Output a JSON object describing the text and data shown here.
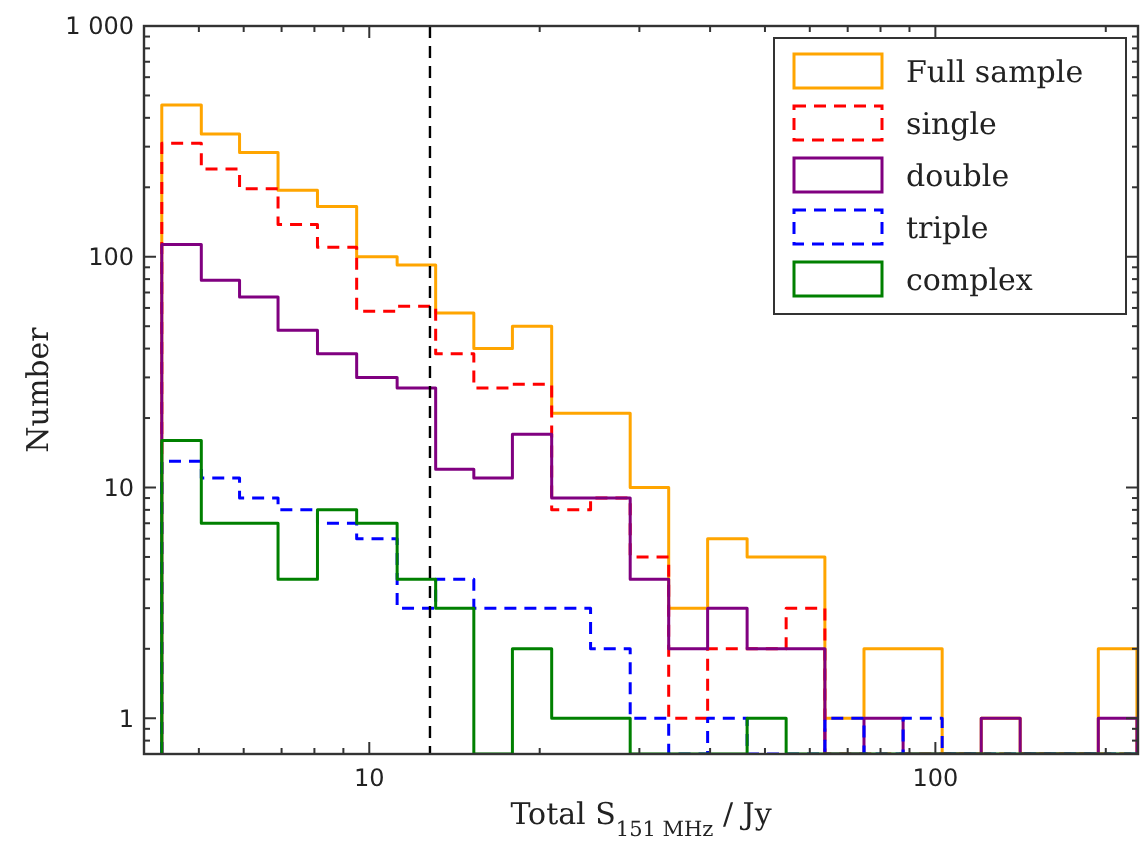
{
  "chart_data": {
    "type": "histogram",
    "xlabel": "Total S$_{151 MHz}$ / Jy",
    "ylabel": "Number",
    "log": "xy",
    "legend": "top right",
    "bins": [
      4.3,
      5.05,
      5.9,
      6.9,
      8.1,
      9.5,
      11.2,
      13.1,
      15.3,
      17.9,
      21,
      24.6,
      28.9,
      33.8,
      39.6,
      46.5,
      54.5,
      63.8,
      74.8,
      87.7,
      102.8,
      120.5,
      141.2,
      165.5,
      194,
      227
    ],
    "xlim": [
      4,
      228
    ],
    "ylim": [
      0.7,
      1000
    ],
    "xticks": [
      {
        "value": 5,
        "label": null
      },
      {
        "value": 6,
        "label": null
      },
      {
        "value": 7,
        "label": null
      },
      {
        "value": 8,
        "label": null
      },
      {
        "value": 9,
        "label": null
      },
      10,
      {
        "value": 20,
        "label": null
      },
      {
        "value": 30,
        "label": null
      },
      {
        "value": 40,
        "label": null
      },
      {
        "value": 50,
        "label": null
      },
      {
        "value": 60,
        "label": null
      },
      {
        "value": 70,
        "label": null
      },
      {
        "value": 80,
        "label": null
      },
      {
        "value": 90,
        "label": null
      },
      100,
      {
        "value": 200,
        "label": null
      }
    ],
    "yticks": [
      {
        "value": 0.8,
        "label": null
      },
      {
        "value": 0.9,
        "label": null
      },
      1,
      {
        "value": 2,
        "label": null
      },
      {
        "value": 3,
        "label": null
      },
      {
        "value": 4,
        "label": null
      },
      {
        "value": 5,
        "label": null
      },
      {
        "value": 6,
        "label": null
      },
      {
        "value": 7,
        "label": null
      },
      {
        "value": 8,
        "label": null
      },
      {
        "value": 9,
        "label": null
      },
      10,
      {
        "value": 20,
        "label": null
      },
      {
        "value": 30,
        "label": null
      },
      {
        "value": 40,
        "label": null
      },
      {
        "value": 50,
        "label": null
      },
      {
        "value": 60,
        "label": null
      },
      {
        "value": 70,
        "label": null
      },
      {
        "value": 80,
        "label": null
      },
      {
        "value": 90,
        "label": null
      },
      100,
      {
        "value": 200,
        "label": null
      },
      {
        "value": 300,
        "label": null
      },
      {
        "value": 400,
        "label": null
      },
      {
        "value": 500,
        "label": null
      },
      {
        "value": 600,
        "label": null
      },
      {
        "value": 700,
        "label": null
      },
      {
        "value": 800,
        "label": null
      },
      {
        "value": 900,
        "label": null
      },
      {
        "value": 1000,
        "label": "1 000"
      }
    ],
    "ref_lines": [
      {
        "axis": "x",
        "value": 12.8,
        "color": "#000000",
        "line_style": "dashed"
      }
    ],
    "series": [
      {
        "name": "Full sample",
        "color": "#ffa500",
        "line_style": "solid",
        "values": [
          455,
          340,
          283,
          194,
          165,
          100,
          92,
          57,
          40,
          50,
          21,
          21,
          10,
          3,
          6,
          5,
          5,
          1,
          2,
          2,
          null,
          1,
          null,
          null,
          2
        ]
      },
      {
        "name": "single",
        "color": "#ff0000",
        "line_style": "dashed",
        "values": [
          310,
          240,
          197,
          138,
          110,
          58,
          61,
          38,
          27,
          28,
          8,
          9,
          5,
          1,
          2,
          2,
          3,
          null,
          null,
          null,
          null,
          null,
          null,
          null,
          null
        ]
      },
      {
        "name": "double",
        "color": "#800080",
        "line_style": "solid",
        "values": [
          113,
          79,
          67,
          48,
          38,
          30,
          27,
          12,
          11,
          17,
          9,
          9,
          4,
          2,
          3,
          2,
          2,
          null,
          1,
          null,
          null,
          1,
          null,
          null,
          1
        ]
      },
      {
        "name": "triple",
        "color": "#0000ff",
        "line_style": "dashed",
        "values": [
          13,
          11,
          9,
          8,
          7,
          6,
          3,
          4,
          3,
          3,
          3,
          2,
          1,
          null,
          1,
          null,
          null,
          1,
          null,
          1,
          null,
          null,
          null,
          null,
          null
        ]
      },
      {
        "name": "complex",
        "color": "#008000",
        "line_style": "solid",
        "values": [
          16,
          7,
          7,
          4,
          8,
          7,
          4,
          3,
          null,
          2,
          1,
          1,
          null,
          null,
          null,
          1,
          null,
          null,
          null,
          null,
          null,
          null,
          null,
          null,
          null
        ]
      }
    ]
  }
}
